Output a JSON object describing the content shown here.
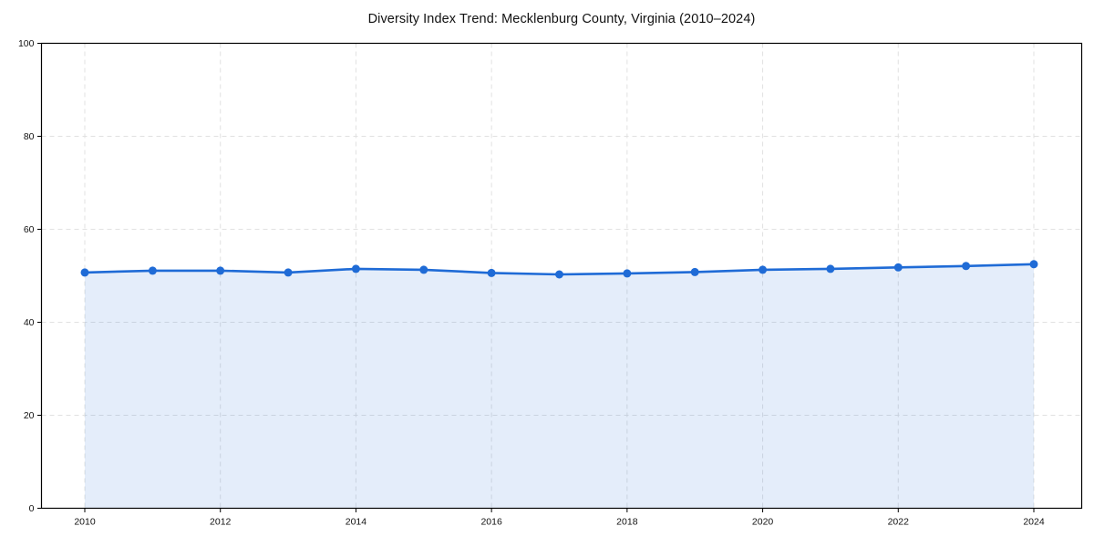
{
  "title": "Diversity Index Trend: Mecklenburg County, Virginia (2010–2024)",
  "chart_data": {
    "type": "line",
    "title": "Diversity Index Trend: Mecklenburg County, Virginia (2010–2024)",
    "xlabel": "",
    "ylabel": "",
    "x": [
      2010,
      2011,
      2012,
      2013,
      2014,
      2015,
      2016,
      2017,
      2018,
      2019,
      2020,
      2021,
      2022,
      2023,
      2024
    ],
    "series": [
      {
        "name": "Diversity Index",
        "values": [
          50.7,
          51.1,
          51.1,
          50.7,
          51.5,
          51.3,
          50.6,
          50.3,
          50.5,
          50.8,
          51.3,
          51.5,
          51.8,
          52.1,
          52.5
        ]
      }
    ],
    "x_ticks": [
      2010,
      2012,
      2014,
      2016,
      2018,
      2020,
      2022,
      2024
    ],
    "y_ticks": [
      0,
      20,
      40,
      60,
      80,
      100
    ],
    "ylim": [
      0,
      100
    ],
    "grid": "dashed-both-axes",
    "legend": "none",
    "marker": "circle",
    "area_fill": true,
    "colors": {
      "line": "#1f6bd6",
      "marker": "#1f6bd6",
      "area": "#1f6bd6",
      "area_opacity": 0.12,
      "grid": "#e1e1e1",
      "frame": "#000000",
      "tick_text": "#111111",
      "background": "#ffffff"
    }
  }
}
